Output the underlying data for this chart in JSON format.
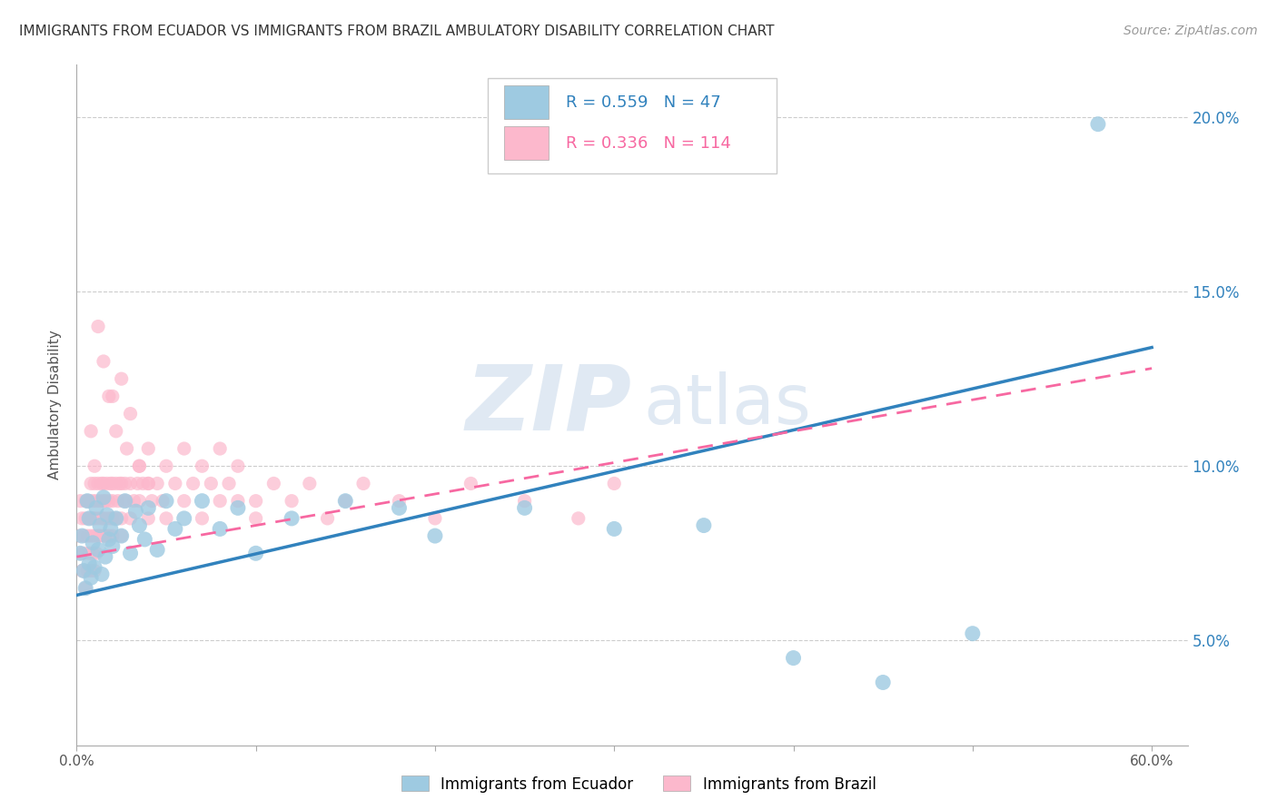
{
  "title": "IMMIGRANTS FROM ECUADOR VS IMMIGRANTS FROM BRAZIL AMBULATORY DISABILITY CORRELATION CHART",
  "source_text": "Source: ZipAtlas.com",
  "ylabel": "Ambulatory Disability",
  "xlim": [
    0.0,
    0.62
  ],
  "ylim": [
    0.02,
    0.215
  ],
  "xticks": [
    0.0,
    0.1,
    0.2,
    0.3,
    0.4,
    0.5,
    0.6
  ],
  "xtick_labels": [
    "0.0%",
    "",
    "",
    "",
    "",
    "",
    "60.0%"
  ],
  "yticks": [
    0.05,
    0.1,
    0.15,
    0.2
  ],
  "ytick_labels": [
    "5.0%",
    "10.0%",
    "15.0%",
    "20.0%"
  ],
  "ecuador_color": "#9ecae1",
  "brazil_color": "#fcb8cc",
  "ecuador_line_color": "#3182bd",
  "brazil_line_color": "#f768a1",
  "ecuador_R": 0.559,
  "ecuador_N": 47,
  "brazil_R": 0.336,
  "brazil_N": 114,
  "legend_label_ecuador": "Immigrants from Ecuador",
  "legend_label_brazil": "Immigrants from Brazil",
  "watermark_zip": "ZIP",
  "watermark_atlas": "atlas",
  "background_color": "#ffffff",
  "grid_color": "#cccccc",
  "ecuador_scatter_x": [
    0.002,
    0.003,
    0.004,
    0.005,
    0.006,
    0.007,
    0.007,
    0.008,
    0.009,
    0.01,
    0.011,
    0.012,
    0.013,
    0.014,
    0.015,
    0.016,
    0.017,
    0.018,
    0.019,
    0.02,
    0.022,
    0.025,
    0.027,
    0.03,
    0.033,
    0.035,
    0.038,
    0.04,
    0.045,
    0.05,
    0.055,
    0.06,
    0.07,
    0.08,
    0.09,
    0.1,
    0.12,
    0.15,
    0.18,
    0.2,
    0.25,
    0.3,
    0.35,
    0.4,
    0.45,
    0.5,
    0.57
  ],
  "ecuador_scatter_y": [
    0.075,
    0.08,
    0.07,
    0.065,
    0.09,
    0.072,
    0.085,
    0.068,
    0.078,
    0.071,
    0.088,
    0.076,
    0.083,
    0.069,
    0.091,
    0.074,
    0.086,
    0.079,
    0.082,
    0.077,
    0.085,
    0.08,
    0.09,
    0.075,
    0.087,
    0.083,
    0.079,
    0.088,
    0.076,
    0.09,
    0.082,
    0.085,
    0.09,
    0.082,
    0.088,
    0.075,
    0.085,
    0.09,
    0.088,
    0.08,
    0.088,
    0.082,
    0.083,
    0.045,
    0.038,
    0.052,
    0.198
  ],
  "brazil_scatter_x": [
    0.001,
    0.002,
    0.002,
    0.003,
    0.003,
    0.004,
    0.004,
    0.005,
    0.005,
    0.005,
    0.006,
    0.006,
    0.006,
    0.007,
    0.007,
    0.007,
    0.008,
    0.008,
    0.008,
    0.009,
    0.009,
    0.009,
    0.01,
    0.01,
    0.01,
    0.01,
    0.011,
    0.011,
    0.012,
    0.012,
    0.012,
    0.013,
    0.013,
    0.014,
    0.014,
    0.015,
    0.015,
    0.015,
    0.016,
    0.016,
    0.017,
    0.017,
    0.018,
    0.018,
    0.019,
    0.019,
    0.02,
    0.02,
    0.02,
    0.022,
    0.022,
    0.023,
    0.024,
    0.025,
    0.025,
    0.026,
    0.027,
    0.028,
    0.03,
    0.03,
    0.032,
    0.034,
    0.035,
    0.037,
    0.04,
    0.04,
    0.042,
    0.045,
    0.048,
    0.05,
    0.055,
    0.06,
    0.065,
    0.07,
    0.075,
    0.08,
    0.085,
    0.09,
    0.1,
    0.11,
    0.12,
    0.13,
    0.14,
    0.15,
    0.16,
    0.18,
    0.2,
    0.22,
    0.25,
    0.28,
    0.3,
    0.035,
    0.04,
    0.05,
    0.06,
    0.07,
    0.08,
    0.09,
    0.1,
    0.012,
    0.015,
    0.02,
    0.025,
    0.03,
    0.008,
    0.01,
    0.015,
    0.02,
    0.025,
    0.018,
    0.022,
    0.028,
    0.035,
    0.04
  ],
  "brazil_scatter_y": [
    0.08,
    0.075,
    0.09,
    0.07,
    0.085,
    0.08,
    0.075,
    0.065,
    0.09,
    0.085,
    0.07,
    0.08,
    0.09,
    0.075,
    0.085,
    0.09,
    0.07,
    0.08,
    0.095,
    0.075,
    0.085,
    0.09,
    0.07,
    0.08,
    0.085,
    0.095,
    0.075,
    0.09,
    0.08,
    0.085,
    0.095,
    0.08,
    0.09,
    0.085,
    0.095,
    0.08,
    0.085,
    0.095,
    0.08,
    0.09,
    0.085,
    0.095,
    0.08,
    0.09,
    0.085,
    0.095,
    0.08,
    0.09,
    0.095,
    0.085,
    0.095,
    0.09,
    0.095,
    0.085,
    0.095,
    0.09,
    0.095,
    0.09,
    0.085,
    0.095,
    0.09,
    0.095,
    0.09,
    0.095,
    0.085,
    0.095,
    0.09,
    0.095,
    0.09,
    0.085,
    0.095,
    0.09,
    0.095,
    0.085,
    0.095,
    0.09,
    0.095,
    0.09,
    0.085,
    0.095,
    0.09,
    0.095,
    0.085,
    0.09,
    0.095,
    0.09,
    0.085,
    0.095,
    0.09,
    0.085,
    0.095,
    0.1,
    0.105,
    0.1,
    0.105,
    0.1,
    0.105,
    0.1,
    0.09,
    0.14,
    0.13,
    0.12,
    0.125,
    0.115,
    0.11,
    0.1,
    0.09,
    0.085,
    0.08,
    0.12,
    0.11,
    0.105,
    0.1,
    0.095
  ],
  "ecuador_line_x0": 0.0,
  "ecuador_line_y0": 0.063,
  "ecuador_line_x1": 0.6,
  "ecuador_line_y1": 0.134,
  "brazil_line_x0": 0.0,
  "brazil_line_y0": 0.074,
  "brazil_line_x1": 0.6,
  "brazil_line_y1": 0.128
}
